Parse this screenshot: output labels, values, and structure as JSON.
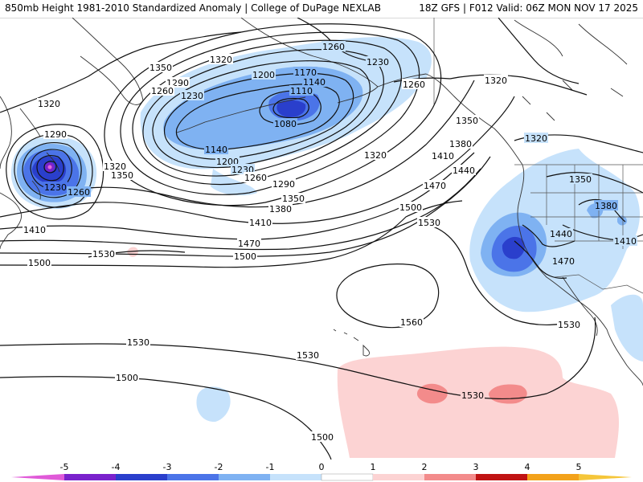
{
  "header": {
    "left": "850mb Height 1981-2010 Standardized Anomaly | College of DuPage NEXLAB",
    "right": "18Z GFS | F012 Valid: 06Z MON NOV 17 2025"
  },
  "colors": {
    "neg1": "#c6e2fb",
    "neg2": "#7fb2f2",
    "neg3": "#4b74e8",
    "neg4": "#2a3fcc",
    "neg5": "#7a22cc",
    "pos1": "#fcd3d3",
    "pos2": "#f38b8b",
    "pos3": "#e04a4a",
    "pos4": "#c01313",
    "pos5": "#f3a21a",
    "contour": "#111111",
    "coast": "#333333"
  },
  "contour_labels": [
    {
      "id": "l1260a",
      "text": "1260"
    },
    {
      "id": "l1230a",
      "text": "1230"
    },
    {
      "id": "l1350a",
      "text": "1350"
    },
    {
      "id": "l1320a",
      "text": "1320"
    },
    {
      "id": "l1200a",
      "text": "1200"
    },
    {
      "id": "l1170a",
      "text": "1170"
    },
    {
      "id": "l1140a",
      "text": "1140"
    },
    {
      "id": "l1290a",
      "text": "1290"
    },
    {
      "id": "l1320b",
      "text": "1320"
    },
    {
      "id": "l1260b",
      "text": "1260"
    },
    {
      "id": "l1230b",
      "text": "1230"
    },
    {
      "id": "l1110a",
      "text": "1110"
    },
    {
      "id": "l1260c",
      "text": "1260"
    },
    {
      "id": "l1320c",
      "text": "1320"
    },
    {
      "id": "l1080a",
      "text": "1080"
    },
    {
      "id": "l1350b",
      "text": "1350"
    },
    {
      "id": "l1290b",
      "text": "1290"
    },
    {
      "id": "l1320d",
      "text": "1320"
    },
    {
      "id": "l1380a",
      "text": "1380"
    },
    {
      "id": "l1140b",
      "text": "1140"
    },
    {
      "id": "l1320e",
      "text": "1320"
    },
    {
      "id": "l1410a",
      "text": "1410"
    },
    {
      "id": "l1200b",
      "text": "1200"
    },
    {
      "id": "l1320f",
      "text": "1320"
    },
    {
      "id": "l1350c",
      "text": "1350"
    },
    {
      "id": "l1230c",
      "text": "1230"
    },
    {
      "id": "l1440a",
      "text": "1440"
    },
    {
      "id": "l1350d",
      "text": "1350"
    },
    {
      "id": "l1230d",
      "text": "1230"
    },
    {
      "id": "l1260d",
      "text": "1260"
    },
    {
      "id": "l1290c",
      "text": "1290"
    },
    {
      "id": "l1260e",
      "text": "1260"
    },
    {
      "id": "l1470a",
      "text": "1470"
    },
    {
      "id": "l1350e",
      "text": "1350"
    },
    {
      "id": "l1380b",
      "text": "1380"
    },
    {
      "id": "l1500a",
      "text": "1500"
    },
    {
      "id": "l1380c",
      "text": "1380"
    },
    {
      "id": "l1410b",
      "text": "1410"
    },
    {
      "id": "l1530a",
      "text": "1530"
    },
    {
      "id": "l1410c",
      "text": "1410"
    },
    {
      "id": "l1440b",
      "text": "1440"
    },
    {
      "id": "l1410d",
      "text": "1410"
    },
    {
      "id": "l1470b",
      "text": "1470"
    },
    {
      "id": "l1500b",
      "text": "1500"
    },
    {
      "id": "l1530b",
      "text": "1530"
    },
    {
      "id": "l1500c",
      "text": "1500"
    },
    {
      "id": "l1470c",
      "text": "1470"
    },
    {
      "id": "l1560a",
      "text": "1560"
    },
    {
      "id": "l1530c",
      "text": "1530"
    },
    {
      "id": "l1530d",
      "text": "1530"
    },
    {
      "id": "l1530e",
      "text": "1530"
    },
    {
      "id": "l1500d",
      "text": "1500"
    },
    {
      "id": "l1530f",
      "text": "1530"
    },
    {
      "id": "l1500e",
      "text": "1500"
    }
  ],
  "legend": {
    "ticks": [
      "-5",
      "-4",
      "-3",
      "-2",
      "-1",
      "0",
      "1",
      "2",
      "3",
      "4",
      "5"
    ]
  }
}
